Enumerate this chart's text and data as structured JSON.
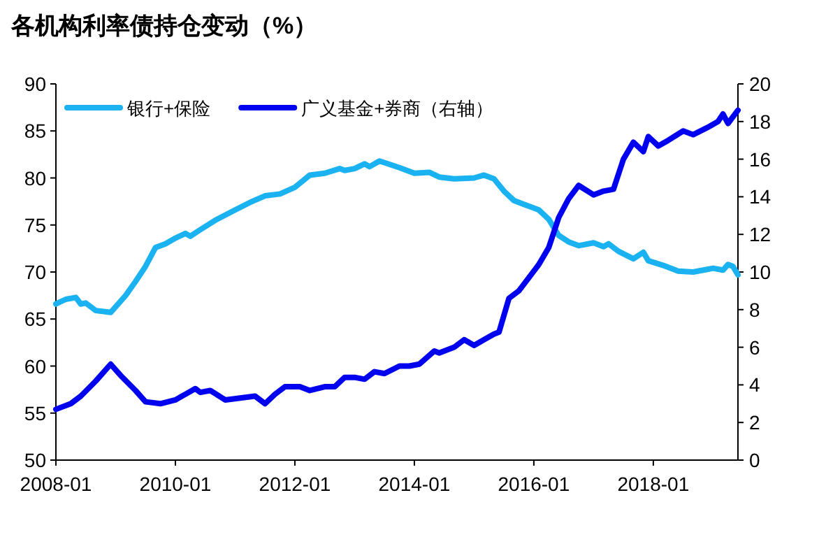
{
  "chart_data": {
    "type": "line",
    "title": "各机构利率债持仓变动（%）",
    "legend": "top left",
    "xlim": [
      "2008-01",
      "2019-06"
    ],
    "xticks": [
      "2008-01",
      "2010-01",
      "2012-01",
      "2014-01",
      "2016-01",
      "2018-01"
    ],
    "ylim": [
      50,
      90
    ],
    "yticks": [
      50,
      55,
      60,
      65,
      70,
      75,
      80,
      85,
      90
    ],
    "y2lim": [
      0,
      20
    ],
    "y2ticks": [
      0,
      2,
      4,
      6,
      8,
      10,
      12,
      14,
      16,
      18,
      20
    ],
    "series": [
      {
        "name": "银行+保险",
        "color": "#1ab2f0",
        "x": [
          "2008-01",
          "2008-03",
          "2008-05",
          "2008-06",
          "2008-07",
          "2008-09",
          "2008-12",
          "2009-03",
          "2009-05",
          "2009-07",
          "2009-09",
          "2009-11",
          "2010-01",
          "2010-03",
          "2010-04",
          "2010-06",
          "2010-09",
          "2011-01",
          "2011-04",
          "2011-07",
          "2011-10",
          "2012-01",
          "2012-04",
          "2012-07",
          "2012-10",
          "2012-11",
          "2013-01",
          "2013-03",
          "2013-04",
          "2013-06",
          "2013-10",
          "2014-01",
          "2014-04",
          "2014-06",
          "2014-09",
          "2015-01",
          "2015-03",
          "2015-05",
          "2015-07",
          "2015-09",
          "2015-11",
          "2016-02",
          "2016-04",
          "2016-06",
          "2016-08",
          "2016-10",
          "2017-01",
          "2017-03",
          "2017-04",
          "2017-06",
          "2017-09",
          "2017-11",
          "2017-12",
          "2018-03",
          "2018-06",
          "2018-09",
          "2019-01",
          "2019-03",
          "2019-04",
          "2019-05",
          "2019-06"
        ],
        "values": [
          66.6,
          67.1,
          67.3,
          66.6,
          66.7,
          65.9,
          65.7,
          67.5,
          69.0,
          70.6,
          72.6,
          73.0,
          73.6,
          74.1,
          73.8,
          74.5,
          75.5,
          76.6,
          77.4,
          78.1,
          78.3,
          79.0,
          80.3,
          80.5,
          81.0,
          80.8,
          81.0,
          81.5,
          81.2,
          81.8,
          81.1,
          80.5,
          80.6,
          80.1,
          79.9,
          80.0,
          80.3,
          79.9,
          78.6,
          77.6,
          77.2,
          76.6,
          75.6,
          73.9,
          73.2,
          72.8,
          73.1,
          72.7,
          73.0,
          72.2,
          71.4,
          72.1,
          71.2,
          70.7,
          70.1,
          70.0,
          70.4,
          70.2,
          70.8,
          70.6,
          69.7
        ]
      },
      {
        "name": "广义基金+券商（右轴）",
        "color": "#0000f0",
        "axis": "y2",
        "x": [
          "2008-01",
          "2008-04",
          "2008-06",
          "2008-09",
          "2008-11",
          "2008-12",
          "2009-02",
          "2009-05",
          "2009-07",
          "2009-10",
          "2010-01",
          "2010-03",
          "2010-05",
          "2010-06",
          "2010-08",
          "2010-11",
          "2011-02",
          "2011-05",
          "2011-07",
          "2011-09",
          "2011-11",
          "2012-02",
          "2012-04",
          "2012-07",
          "2012-09",
          "2012-11",
          "2013-01",
          "2013-03",
          "2013-05",
          "2013-07",
          "2013-10",
          "2013-12",
          "2014-02",
          "2014-05",
          "2014-06",
          "2014-09",
          "2014-11",
          "2015-01",
          "2015-03",
          "2015-05",
          "2015-06",
          "2015-08",
          "2015-10",
          "2015-12",
          "2016-02",
          "2016-04",
          "2016-06",
          "2016-08",
          "2016-10",
          "2017-01",
          "2017-03",
          "2017-05",
          "2017-07",
          "2017-09",
          "2017-11",
          "2017-12",
          "2018-02",
          "2018-04",
          "2018-07",
          "2018-09",
          "2018-12",
          "2019-02",
          "2019-03",
          "2019-04",
          "2019-06"
        ],
        "values": [
          2.7,
          3.0,
          3.4,
          4.2,
          4.8,
          5.1,
          4.5,
          3.7,
          3.1,
          3.0,
          3.2,
          3.5,
          3.8,
          3.6,
          3.7,
          3.2,
          3.3,
          3.4,
          3.0,
          3.5,
          3.9,
          3.9,
          3.7,
          3.9,
          3.9,
          4.4,
          4.4,
          4.3,
          4.7,
          4.6,
          5.0,
          5.0,
          5.1,
          5.8,
          5.7,
          6.0,
          6.4,
          6.1,
          6.4,
          6.7,
          6.8,
          8.6,
          9.0,
          9.7,
          10.4,
          11.3,
          12.9,
          13.9,
          14.6,
          14.1,
          14.3,
          14.4,
          16.0,
          16.9,
          16.4,
          17.2,
          16.7,
          17.0,
          17.5,
          17.3,
          17.7,
          18.0,
          18.4,
          17.9,
          18.6
        ]
      }
    ]
  }
}
